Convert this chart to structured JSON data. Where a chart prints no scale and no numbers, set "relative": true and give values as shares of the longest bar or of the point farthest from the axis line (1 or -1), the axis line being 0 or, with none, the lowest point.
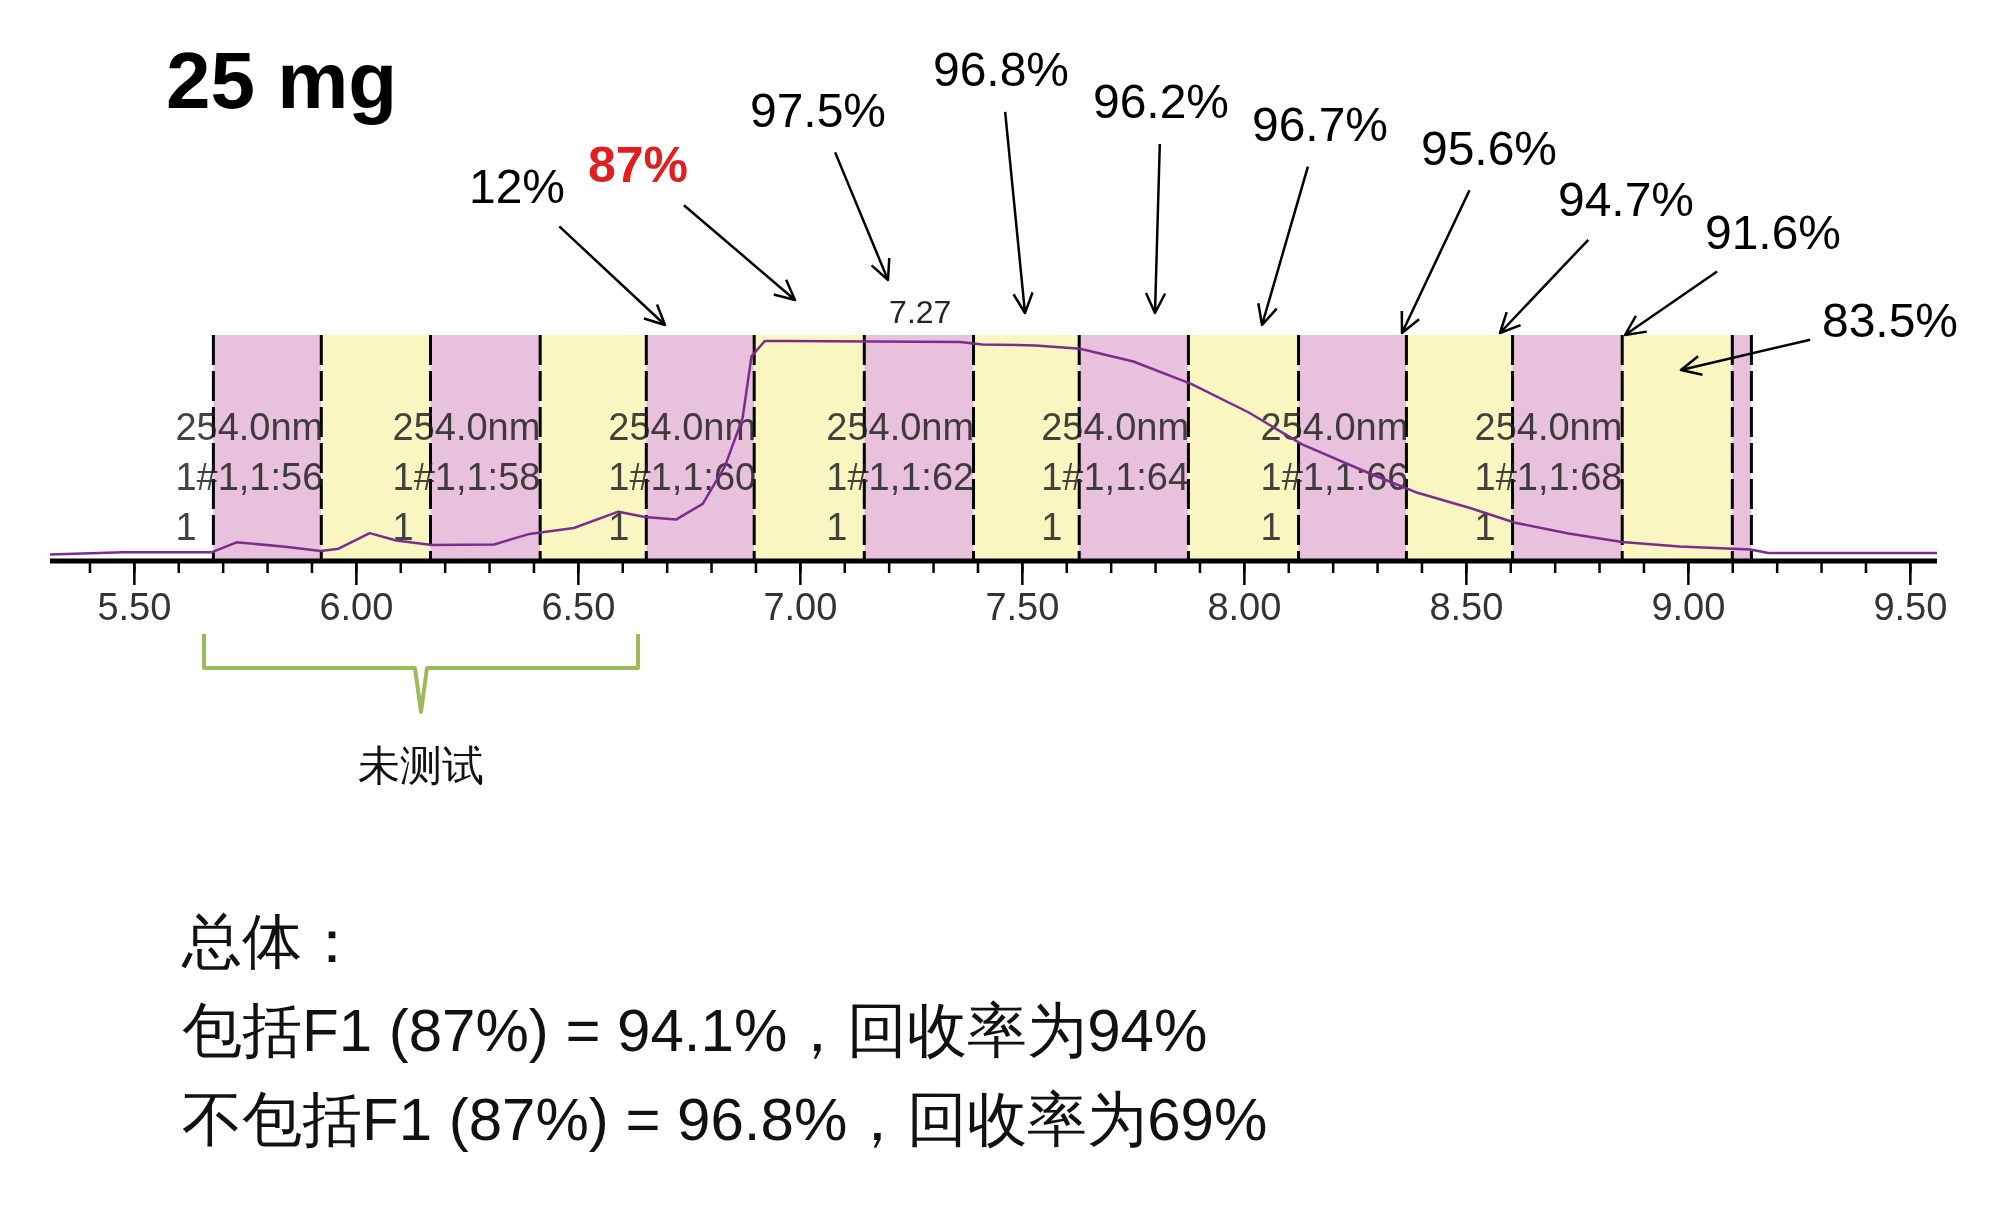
{
  "chart_data": {
    "type": "line",
    "title": "25 mg",
    "relative": true,
    "xlim": [
      5.31,
      9.56
    ],
    "xticks": [
      {
        "value": 5.5,
        "label": "5.50"
      },
      {
        "value": 6.0,
        "label": "6.00"
      },
      {
        "value": 6.5,
        "label": "6.50"
      },
      {
        "value": 7.0,
        "label": "7.00"
      },
      {
        "value": 7.5,
        "label": "7.50"
      },
      {
        "value": 8.0,
        "label": "8.00"
      },
      {
        "value": 8.5,
        "label": "8.50"
      },
      {
        "value": 9.0,
        "label": "9.00"
      },
      {
        "value": 9.5,
        "label": "9.50"
      }
    ],
    "grid": false,
    "series": [
      {
        "color": "#7b2d8e",
        "x": [
          5.31,
          5.475,
          5.675,
          5.73,
          5.84,
          5.92,
          5.96,
          6.03,
          6.09,
          6.17,
          6.31,
          6.39,
          6.49,
          6.59,
          6.65,
          6.72,
          6.78,
          6.83,
          6.87,
          6.89,
          6.92,
          6.97,
          7.36,
          7.41,
          7.53,
          7.63,
          7.75,
          7.88,
          8.01,
          8.13,
          8.28,
          8.39,
          8.51,
          8.61,
          8.73,
          8.85,
          8.98,
          9.14,
          9.18,
          9.56
        ],
        "values": [
          0.03,
          0.04,
          0.04,
          0.085,
          0.065,
          0.046,
          0.056,
          0.127,
          0.093,
          0.073,
          0.075,
          0.123,
          0.15,
          0.224,
          0.2,
          0.188,
          0.26,
          0.43,
          0.65,
          0.93,
          1.0,
          1.0,
          0.995,
          0.984,
          0.98,
          0.965,
          0.907,
          0.805,
          0.675,
          0.53,
          0.4,
          0.31,
          0.24,
          0.174,
          0.125,
          0.086,
          0.066,
          0.052,
          0.037,
          0.037
        ]
      }
    ],
    "bands": [
      {
        "axis": "x",
        "from": 5.678,
        "to": 5.921,
        "color": "#e8c1dc",
        "label": "254.0nm\n1#1,1:56\n1"
      },
      {
        "axis": "x",
        "from": 5.921,
        "to": 6.167,
        "color": "#f9f6c2",
        "label": null
      },
      {
        "axis": "x",
        "from": 6.167,
        "to": 6.414,
        "color": "#e8c1dc",
        "label": "254.0nm\n1#1,1:58\n1"
      },
      {
        "axis": "x",
        "from": 6.414,
        "to": 6.653,
        "color": "#f9f6c2",
        "label": null
      },
      {
        "axis": "x",
        "from": 6.653,
        "to": 6.896,
        "color": "#e8c1dc",
        "label": "254.0nm\n1#1,1:60\n1"
      },
      {
        "axis": "x",
        "from": 6.896,
        "to": 7.144,
        "color": "#f9f6c2",
        "label": null
      },
      {
        "axis": "x",
        "from": 7.144,
        "to": 7.39,
        "color": "#e8c1dc",
        "label": "254.0nm\n1#1,1:62\n1"
      },
      {
        "axis": "x",
        "from": 7.39,
        "to": 7.628,
        "color": "#f9f6c2",
        "label": null
      },
      {
        "axis": "x",
        "from": 7.628,
        "to": 7.874,
        "color": "#e8c1dc",
        "label": "254.0nm\n1#1,1:64\n1"
      },
      {
        "axis": "x",
        "from": 7.874,
        "to": 8.122,
        "color": "#f9f6c2",
        "label": null
      },
      {
        "axis": "x",
        "from": 8.122,
        "to": 8.365,
        "color": "#e8c1dc",
        "label": "254.0nm\n1#1,1:66\n1"
      },
      {
        "axis": "x",
        "from": 8.365,
        "to": 8.604,
        "color": "#f9f6c2",
        "label": null
      },
      {
        "axis": "x",
        "from": 8.604,
        "to": 8.851,
        "color": "#e8c1dc",
        "label": "254.0nm\n1#1,1:68\n1"
      },
      {
        "axis": "x",
        "from": 8.851,
        "to": 9.099,
        "color": "#f9f6c2",
        "label": null
      },
      {
        "axis": "x",
        "from": 9.099,
        "to": 9.142,
        "color": "#e8c1dc",
        "label": null
      }
    ],
    "annotations": [
      "12%",
      "87%",
      "97.5%",
      "96.8%",
      "96.2%",
      "96.7%",
      "95.6%",
      "94.7%",
      "91.6%",
      "83.5%",
      {
        "text": "7.27",
        "x": 7.27,
        "y": 1.0
      },
      "未测试",
      "总体：",
      "包括F1 (87%) = 94.1%，回收率为94%",
      "不包括F1 (87%) = 96.8%，回收率为69%"
    ]
  }
}
